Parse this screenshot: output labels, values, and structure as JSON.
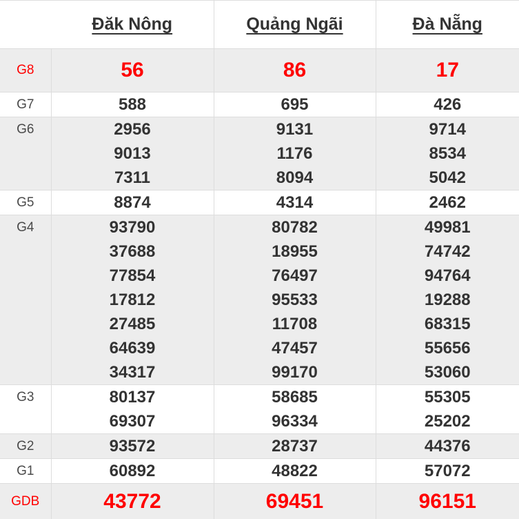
{
  "header": {
    "columns": [
      "Đăk Nông",
      "Quảng Ngãi",
      "Đà Nẵng"
    ]
  },
  "table": {
    "rows": [
      {
        "label": "G8",
        "highlight": true,
        "values": [
          [
            "56"
          ],
          [
            "86"
          ],
          [
            "17"
          ]
        ]
      },
      {
        "label": "G7",
        "highlight": false,
        "values": [
          [
            "588"
          ],
          [
            "695"
          ],
          [
            "426"
          ]
        ]
      },
      {
        "label": "G6",
        "highlight": false,
        "values": [
          [
            "2956",
            "9013",
            "7311"
          ],
          [
            "9131",
            "1176",
            "8094"
          ],
          [
            "9714",
            "8534",
            "5042"
          ]
        ]
      },
      {
        "label": "G5",
        "highlight": false,
        "values": [
          [
            "8874"
          ],
          [
            "4314"
          ],
          [
            "2462"
          ]
        ]
      },
      {
        "label": "G4",
        "highlight": false,
        "values": [
          [
            "93790",
            "37688",
            "77854",
            "17812",
            "27485",
            "64639",
            "34317"
          ],
          [
            "80782",
            "18955",
            "76497",
            "95533",
            "11708",
            "47457",
            "99170"
          ],
          [
            "49981",
            "74742",
            "94764",
            "19288",
            "68315",
            "55656",
            "53060"
          ]
        ]
      },
      {
        "label": "G3",
        "highlight": false,
        "values": [
          [
            "80137",
            "69307"
          ],
          [
            "58685",
            "96334"
          ],
          [
            "55305",
            "25202"
          ]
        ]
      },
      {
        "label": "G2",
        "highlight": false,
        "values": [
          [
            "93572"
          ],
          [
            "28737"
          ],
          [
            "44376"
          ]
        ]
      },
      {
        "label": "G1",
        "highlight": false,
        "values": [
          [
            "60892"
          ],
          [
            "48822"
          ],
          [
            "57072"
          ]
        ]
      },
      {
        "label": "GDB",
        "highlight": true,
        "values": [
          [
            "43772"
          ],
          [
            "69451"
          ],
          [
            "96151"
          ]
        ]
      }
    ]
  },
  "colors": {
    "accent_red": "#ff0000",
    "text_dark": "#333333",
    "row_alt_bg": "#ededed",
    "border": "#dddddd"
  }
}
